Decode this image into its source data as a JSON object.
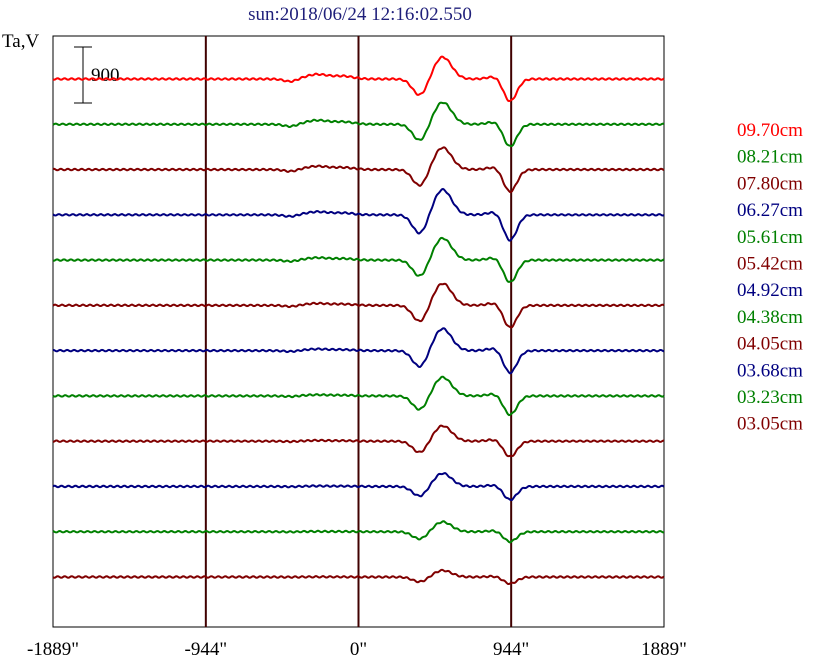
{
  "chart_data": {
    "type": "line",
    "title": "sun:2018/06/24 12:16:02.550",
    "ylabel": "Ta,V",
    "scale_bar_label": "900",
    "xlim": [
      -1889,
      1889
    ],
    "x_ticks": [
      {
        "value": -1889,
        "label": "-1889\""
      },
      {
        "value": -944,
        "label": "-944\""
      },
      {
        "value": 0,
        "label": "0\""
      },
      {
        "value": 944,
        "label": "944\""
      },
      {
        "value": 1889,
        "label": "1889\""
      }
    ],
    "vertical_lines": [
      -944,
      0,
      944
    ],
    "series": [
      {
        "name": "09.70cm",
        "color": "#ff0000",
        "amp": 1.0,
        "bump": 0.35
      },
      {
        "name": "08.21cm",
        "color": "#008000",
        "amp": 1.0,
        "bump": 0.3
      },
      {
        "name": "07.80cm",
        "color": "#800000",
        "amp": 1.0,
        "bump": 0.25
      },
      {
        "name": "06.27cm",
        "color": "#000080",
        "amp": 1.15,
        "bump": 0.2
      },
      {
        "name": "05.61cm",
        "color": "#008000",
        "amp": 1.0,
        "bump": 0.18
      },
      {
        "name": "05.42cm",
        "color": "#800000",
        "amp": 1.0,
        "bump": 0.15
      },
      {
        "name": "04.92cm",
        "color": "#000080",
        "amp": 1.0,
        "bump": 0.12
      },
      {
        "name": "04.38cm",
        "color": "#008000",
        "amp": 0.85,
        "bump": 0.1
      },
      {
        "name": "04.05cm",
        "color": "#800000",
        "amp": 0.7,
        "bump": 0.08
      },
      {
        "name": "03.68cm",
        "color": "#000080",
        "amp": 0.6,
        "bump": 0.06
      },
      {
        "name": "03.23cm",
        "color": "#008000",
        "amp": 0.45,
        "bump": 0.05
      },
      {
        "name": "03.05cm",
        "color": "#800000",
        "amp": 0.3,
        "bump": 0.04
      }
    ]
  }
}
